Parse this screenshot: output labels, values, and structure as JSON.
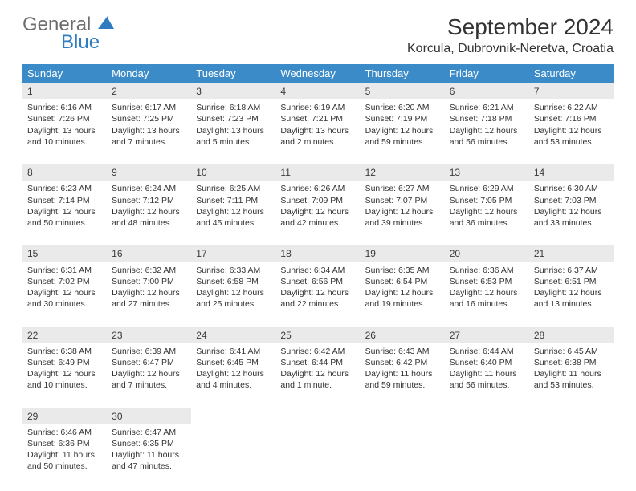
{
  "logo": {
    "word1": "General",
    "word2": "Blue"
  },
  "title": "September 2024",
  "location": "Korcula, Dubrovnik-Neretva, Croatia",
  "colors": {
    "header_bg": "#3b8bc9",
    "header_text": "#ffffff",
    "daynum_bg": "#eaeaea",
    "daynum_border": "#2f7dc0",
    "body_text": "#333333",
    "logo_gray": "#6d6d6d",
    "logo_blue": "#2f7dc0",
    "page_bg": "#ffffff"
  },
  "typography": {
    "title_fontsize": 28,
    "location_fontsize": 16,
    "dayheader_fontsize": 13,
    "daynum_fontsize": 12,
    "cell_fontsize": 10.5
  },
  "day_headers": [
    "Sunday",
    "Monday",
    "Tuesday",
    "Wednesday",
    "Thursday",
    "Friday",
    "Saturday"
  ],
  "weeks": [
    [
      {
        "n": "1",
        "sr": "Sunrise: 6:16 AM",
        "ss": "Sunset: 7:26 PM",
        "d1": "Daylight: 13 hours",
        "d2": "and 10 minutes."
      },
      {
        "n": "2",
        "sr": "Sunrise: 6:17 AM",
        "ss": "Sunset: 7:25 PM",
        "d1": "Daylight: 13 hours",
        "d2": "and 7 minutes."
      },
      {
        "n": "3",
        "sr": "Sunrise: 6:18 AM",
        "ss": "Sunset: 7:23 PM",
        "d1": "Daylight: 13 hours",
        "d2": "and 5 minutes."
      },
      {
        "n": "4",
        "sr": "Sunrise: 6:19 AM",
        "ss": "Sunset: 7:21 PM",
        "d1": "Daylight: 13 hours",
        "d2": "and 2 minutes."
      },
      {
        "n": "5",
        "sr": "Sunrise: 6:20 AM",
        "ss": "Sunset: 7:19 PM",
        "d1": "Daylight: 12 hours",
        "d2": "and 59 minutes."
      },
      {
        "n": "6",
        "sr": "Sunrise: 6:21 AM",
        "ss": "Sunset: 7:18 PM",
        "d1": "Daylight: 12 hours",
        "d2": "and 56 minutes."
      },
      {
        "n": "7",
        "sr": "Sunrise: 6:22 AM",
        "ss": "Sunset: 7:16 PM",
        "d1": "Daylight: 12 hours",
        "d2": "and 53 minutes."
      }
    ],
    [
      {
        "n": "8",
        "sr": "Sunrise: 6:23 AM",
        "ss": "Sunset: 7:14 PM",
        "d1": "Daylight: 12 hours",
        "d2": "and 50 minutes."
      },
      {
        "n": "9",
        "sr": "Sunrise: 6:24 AM",
        "ss": "Sunset: 7:12 PM",
        "d1": "Daylight: 12 hours",
        "d2": "and 48 minutes."
      },
      {
        "n": "10",
        "sr": "Sunrise: 6:25 AM",
        "ss": "Sunset: 7:11 PM",
        "d1": "Daylight: 12 hours",
        "d2": "and 45 minutes."
      },
      {
        "n": "11",
        "sr": "Sunrise: 6:26 AM",
        "ss": "Sunset: 7:09 PM",
        "d1": "Daylight: 12 hours",
        "d2": "and 42 minutes."
      },
      {
        "n": "12",
        "sr": "Sunrise: 6:27 AM",
        "ss": "Sunset: 7:07 PM",
        "d1": "Daylight: 12 hours",
        "d2": "and 39 minutes."
      },
      {
        "n": "13",
        "sr": "Sunrise: 6:29 AM",
        "ss": "Sunset: 7:05 PM",
        "d1": "Daylight: 12 hours",
        "d2": "and 36 minutes."
      },
      {
        "n": "14",
        "sr": "Sunrise: 6:30 AM",
        "ss": "Sunset: 7:03 PM",
        "d1": "Daylight: 12 hours",
        "d2": "and 33 minutes."
      }
    ],
    [
      {
        "n": "15",
        "sr": "Sunrise: 6:31 AM",
        "ss": "Sunset: 7:02 PM",
        "d1": "Daylight: 12 hours",
        "d2": "and 30 minutes."
      },
      {
        "n": "16",
        "sr": "Sunrise: 6:32 AM",
        "ss": "Sunset: 7:00 PM",
        "d1": "Daylight: 12 hours",
        "d2": "and 27 minutes."
      },
      {
        "n": "17",
        "sr": "Sunrise: 6:33 AM",
        "ss": "Sunset: 6:58 PM",
        "d1": "Daylight: 12 hours",
        "d2": "and 25 minutes."
      },
      {
        "n": "18",
        "sr": "Sunrise: 6:34 AM",
        "ss": "Sunset: 6:56 PM",
        "d1": "Daylight: 12 hours",
        "d2": "and 22 minutes."
      },
      {
        "n": "19",
        "sr": "Sunrise: 6:35 AM",
        "ss": "Sunset: 6:54 PM",
        "d1": "Daylight: 12 hours",
        "d2": "and 19 minutes."
      },
      {
        "n": "20",
        "sr": "Sunrise: 6:36 AM",
        "ss": "Sunset: 6:53 PM",
        "d1": "Daylight: 12 hours",
        "d2": "and 16 minutes."
      },
      {
        "n": "21",
        "sr": "Sunrise: 6:37 AM",
        "ss": "Sunset: 6:51 PM",
        "d1": "Daylight: 12 hours",
        "d2": "and 13 minutes."
      }
    ],
    [
      {
        "n": "22",
        "sr": "Sunrise: 6:38 AM",
        "ss": "Sunset: 6:49 PM",
        "d1": "Daylight: 12 hours",
        "d2": "and 10 minutes."
      },
      {
        "n": "23",
        "sr": "Sunrise: 6:39 AM",
        "ss": "Sunset: 6:47 PM",
        "d1": "Daylight: 12 hours",
        "d2": "and 7 minutes."
      },
      {
        "n": "24",
        "sr": "Sunrise: 6:41 AM",
        "ss": "Sunset: 6:45 PM",
        "d1": "Daylight: 12 hours",
        "d2": "and 4 minutes."
      },
      {
        "n": "25",
        "sr": "Sunrise: 6:42 AM",
        "ss": "Sunset: 6:44 PM",
        "d1": "Daylight: 12 hours",
        "d2": "and 1 minute."
      },
      {
        "n": "26",
        "sr": "Sunrise: 6:43 AM",
        "ss": "Sunset: 6:42 PM",
        "d1": "Daylight: 11 hours",
        "d2": "and 59 minutes."
      },
      {
        "n": "27",
        "sr": "Sunrise: 6:44 AM",
        "ss": "Sunset: 6:40 PM",
        "d1": "Daylight: 11 hours",
        "d2": "and 56 minutes."
      },
      {
        "n": "28",
        "sr": "Sunrise: 6:45 AM",
        "ss": "Sunset: 6:38 PM",
        "d1": "Daylight: 11 hours",
        "d2": "and 53 minutes."
      }
    ],
    [
      {
        "n": "29",
        "sr": "Sunrise: 6:46 AM",
        "ss": "Sunset: 6:36 PM",
        "d1": "Daylight: 11 hours",
        "d2": "and 50 minutes."
      },
      {
        "n": "30",
        "sr": "Sunrise: 6:47 AM",
        "ss": "Sunset: 6:35 PM",
        "d1": "Daylight: 11 hours",
        "d2": "and 47 minutes."
      },
      null,
      null,
      null,
      null,
      null
    ]
  ]
}
